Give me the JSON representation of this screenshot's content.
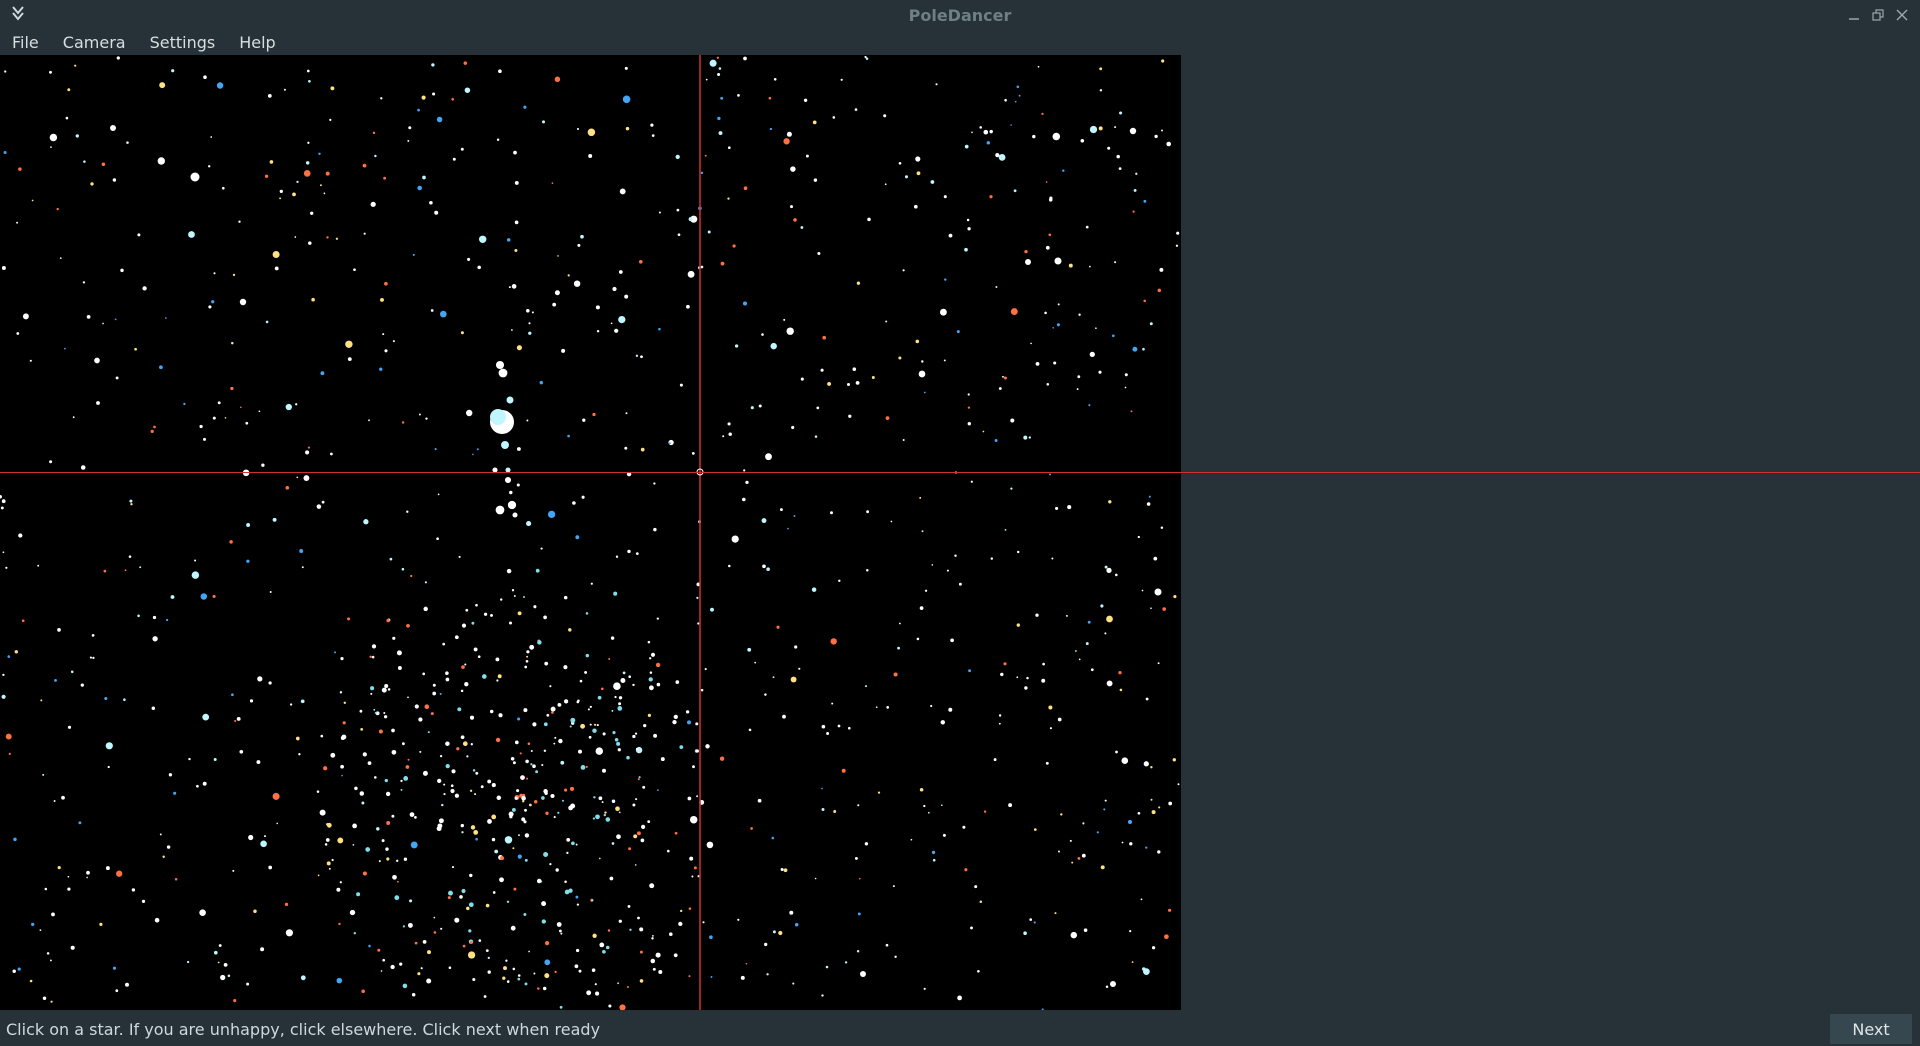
{
  "window": {
    "title": "PoleDancer",
    "app_icon": "kde-app-icon",
    "controls": [
      "minimize-icon",
      "restore-icon",
      "close-icon"
    ]
  },
  "menubar": {
    "items": [
      "File",
      "Camera",
      "Settings",
      "Help"
    ]
  },
  "viewport": {
    "background": "#000000",
    "crosshair_color": "#d32f2f",
    "star_colors": [
      "#ffffff",
      "#bff6ff",
      "#80deea",
      "#ffe082",
      "#ff7043",
      "#42a5f5"
    ]
  },
  "statusbar": {
    "message": "Click on a star. If you are unhappy, click elsewhere. Click next when ready",
    "next_label": "Next"
  }
}
